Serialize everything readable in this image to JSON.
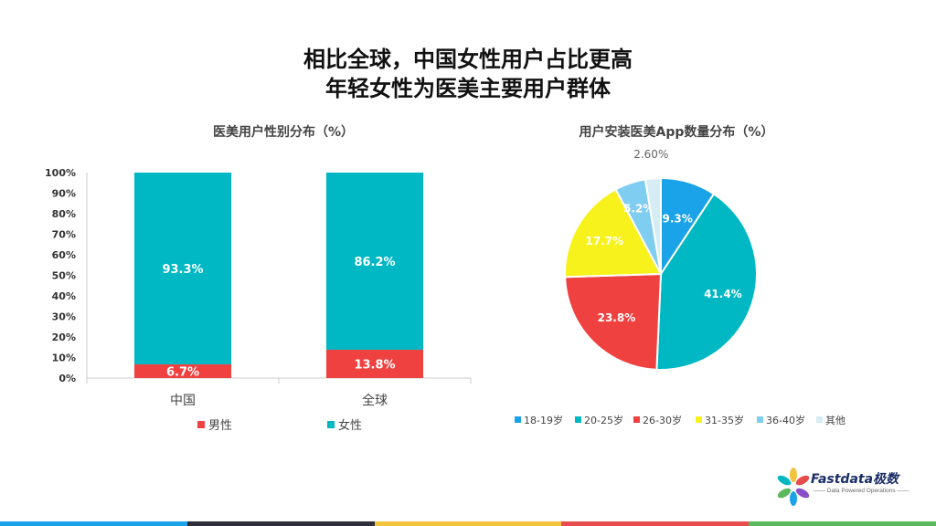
{
  "slide": {
    "title_line1": "相比全球，中国女性用户占比更高",
    "title_line2": "年轻女性为医美主要用户群体"
  },
  "chart_data": [
    {
      "type": "bar",
      "stacked": true,
      "title": "医美用户性别分布（%）",
      "categories": [
        "中国",
        "全球"
      ],
      "series": [
        {
          "name": "男性",
          "values": [
            6.7,
            13.8
          ],
          "labels": [
            "6.7%",
            "13.8%"
          ],
          "color": "#f04141"
        },
        {
          "name": "女性",
          "values": [
            93.3,
            86.2
          ],
          "labels": [
            "93.3%",
            "86.2%"
          ],
          "color": "#00b8c4"
        }
      ],
      "ylim": [
        0,
        100
      ],
      "yticks": [
        "0%",
        "10%",
        "20%",
        "30%",
        "40%",
        "50%",
        "60%",
        "70%",
        "80%",
        "90%",
        "100%"
      ],
      "legend": "bottom"
    },
    {
      "type": "pie",
      "title": "用户安装医美App数量分布（%）",
      "slices": [
        {
          "name": "18-19岁",
          "value": 9.3,
          "label": "9.3%",
          "color": "#1aa3e8"
        },
        {
          "name": "20-25岁",
          "value": 41.4,
          "label": "41.4%",
          "color": "#00b8c4"
        },
        {
          "name": "26-30岁",
          "value": 23.8,
          "label": "23.8%",
          "color": "#f04141"
        },
        {
          "name": "31-35岁",
          "value": 17.7,
          "label": "17.7%",
          "color": "#f7f21c"
        },
        {
          "name": "36-40岁",
          "value": 5.2,
          "label": "5.2%",
          "color": "#7fcdf0"
        },
        {
          "name": "其他",
          "value": 2.6,
          "label": "2.60%",
          "color": "#d6edf6"
        }
      ],
      "legend": "bottom"
    }
  ],
  "logo": {
    "name": "Fastdata极数",
    "tagline": "—— Data Powered Operations ——"
  },
  "colors": {
    "bottom_bar": [
      "#1aa3e8",
      "#2e2e3a",
      "#f2c43d",
      "#e84c4c",
      "#5cb85c"
    ]
  }
}
